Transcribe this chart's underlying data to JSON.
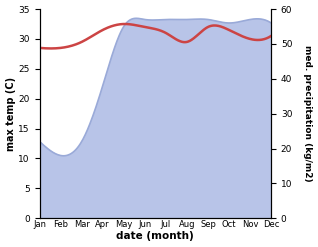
{
  "months": [
    "Jan",
    "Feb",
    "Mar",
    "Apr",
    "May",
    "Jun",
    "Jul",
    "Aug",
    "Sep",
    "Oct",
    "Nov",
    "Dec"
  ],
  "month_positions": [
    0,
    1,
    2,
    3,
    4,
    5,
    6,
    7,
    8,
    9,
    10,
    11
  ],
  "max_temp": [
    28.5,
    28.5,
    29.5,
    31.5,
    32.5,
    32.0,
    31.0,
    29.5,
    32.0,
    31.5,
    30.0,
    30.5
  ],
  "precipitation": [
    22,
    18,
    22,
    38,
    55,
    57,
    57,
    57,
    57,
    56,
    57,
    56
  ],
  "temp_color": "#cc4444",
  "precip_fill_color": "#b8c4e8",
  "precip_line_color": "#9aaad8",
  "temp_ylim": [
    0,
    35
  ],
  "precip_ylim": [
    0,
    60
  ],
  "temp_yticks": [
    0,
    5,
    10,
    15,
    20,
    25,
    30,
    35
  ],
  "precip_yticks": [
    0,
    10,
    20,
    30,
    40,
    50,
    60
  ],
  "xlabel": "date (month)",
  "ylabel_left": "max temp (C)",
  "ylabel_right": "med. precipitation (kg/m2)",
  "figsize": [
    3.18,
    2.47
  ],
  "dpi": 100
}
